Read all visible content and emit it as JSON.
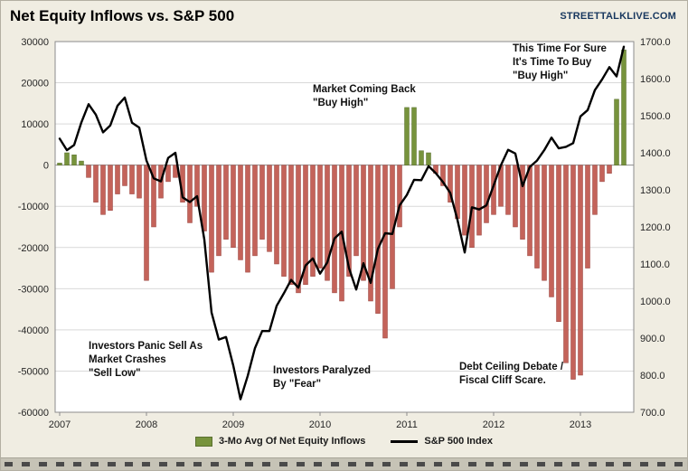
{
  "header": {
    "title": "Net Equity Inflows vs. S&P 500",
    "brand": "STREETTALKLIVE.COM"
  },
  "annotations": [
    {
      "text": "Investors Panic Sell As\nMarket Crashes\n\"Sell Low\""
    },
    {
      "text": "Investors Paralyzed\nBy \"Fear\""
    },
    {
      "text": "Market Coming Back\n\"Buy High\""
    },
    {
      "text": "Debt Ceiling Debate /\nFiscal Cliff Scare."
    },
    {
      "text": "This Time For Sure\nIt's Time To Buy\n\"Buy High\""
    }
  ],
  "legend": [
    {
      "label": "3-Mo Avg Of Net Equity Inflows",
      "swatch": "bar"
    },
    {
      "label": "S&P 500 Index",
      "swatch": "line"
    }
  ],
  "chart_data": {
    "type": "bar",
    "combo": "bar (left axis) + line (right axis)",
    "title": "Net Equity Inflows vs. S&P 500",
    "x_unit": "month",
    "x_start": "2007-01",
    "x_end": "2013-07",
    "x_tick_labels": [
      "2007",
      "2008",
      "2009",
      "2010",
      "2011",
      "2012",
      "2013"
    ],
    "y_left_ticks": [
      "30000",
      "20000",
      "10000",
      "0",
      "-10000",
      "-20000",
      "-30000",
      "-40000",
      "-50000",
      "-60000"
    ],
    "y_left_range": [
      -60000,
      30000
    ],
    "y_right_ticks": [
      "1700.0",
      "1600.0",
      "1500.0",
      "1400.0",
      "1300.0",
      "1200.0",
      "1100.0",
      "1000.0",
      "900.0",
      "800.0",
      "700.0"
    ],
    "y_right_range": [
      700,
      1700
    ],
    "grid": "horizontal only",
    "legend_position": "bottom center",
    "series": [
      {
        "name": "3-Mo Avg Of Net Equity Inflows",
        "type": "bar",
        "axis": "left",
        "values": [
          500,
          3000,
          2500,
          1000,
          -3000,
          -9000,
          -12000,
          -11000,
          -7000,
          -5000,
          -7000,
          -8000,
          -28000,
          -15000,
          -8000,
          -4000,
          -3000,
          -9000,
          -14000,
          -10000,
          -16000,
          -26000,
          -22000,
          -18000,
          -20000,
          -23000,
          -26000,
          -22000,
          -18000,
          -21000,
          -24000,
          -27000,
          -29000,
          -31000,
          -29000,
          -27000,
          -25000,
          -28000,
          -31000,
          -33000,
          -27000,
          -22000,
          -28000,
          -33000,
          -36000,
          -42000,
          -30000,
          -15000,
          14000,
          14000,
          3500,
          3000,
          -2000,
          -5000,
          -9000,
          -13000,
          -17000,
          -20000,
          -17000,
          -14000,
          -12000,
          -10000,
          -12000,
          -15000,
          -18000,
          -22000,
          -25000,
          -28000,
          -32000,
          -38000,
          -48000,
          -52000,
          -51000,
          -25000,
          -12000,
          -4000,
          -2000,
          16000,
          28000
        ]
      },
      {
        "name": "S&P 500 Index",
        "type": "line",
        "axis": "right",
        "values": [
          1438,
          1407,
          1421,
          1482,
          1531,
          1503,
          1455,
          1474,
          1527,
          1549,
          1481,
          1468,
          1379,
          1331,
          1323,
          1386,
          1400,
          1280,
          1267,
          1283,
          1166,
          969,
          896,
          903,
          826,
          735,
          798,
          873,
          919,
          919,
          987,
          1021,
          1057,
          1036,
          1096,
          1115,
          1074,
          1104,
          1169,
          1187,
          1089,
          1031,
          1102,
          1049,
          1141,
          1183,
          1181,
          1258,
          1286,
          1327,
          1326,
          1364,
          1345,
          1321,
          1292,
          1219,
          1131,
          1253,
          1247,
          1258,
          1312,
          1366,
          1408,
          1398,
          1310,
          1362,
          1379,
          1407,
          1441,
          1412,
          1416,
          1426,
          1498,
          1515,
          1569,
          1598,
          1631,
          1606,
          1686
        ]
      }
    ],
    "colors": {
      "bar_positive": "#77933C",
      "bar_negative": "#C4635A",
      "line": "#000000",
      "background": "#F0EDE2",
      "plot_background": "#FFFFFF",
      "gridline": "#D9D9D9",
      "brand": "#17375E"
    }
  }
}
